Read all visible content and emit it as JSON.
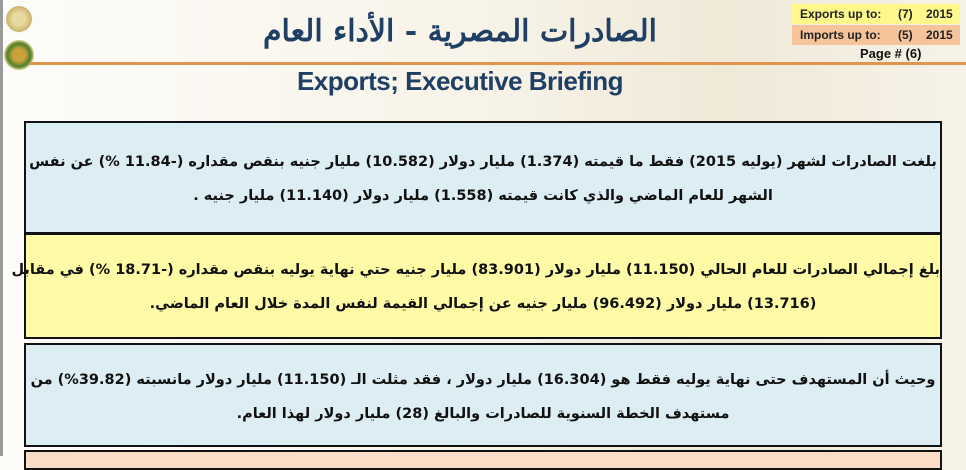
{
  "header": {
    "arabic_title": "الصادرات المصرية - الأداء العام",
    "english_title": "Exports; Executive Briefing",
    "exports_label": "Exports up to:",
    "exports_month": "(7)",
    "exports_year": "2015",
    "imports_label": "Imports up to:",
    "imports_month": "(5)",
    "imports_year": "2015",
    "page": "Page # (6)"
  },
  "colors": {
    "title": "#1f3f64",
    "rule": "#e0944e",
    "panel_blue": "#dcedf3",
    "panel_yellow": "#fefaa6",
    "exports_bg": "#fef98a",
    "imports_bg": "#f5c49a"
  },
  "panels": [
    {
      "lines": [
        "بلغت الصادرات لشهر (يوليه 2015) فقط ما قيمته (1.374) مليار دولار (10.582) مليار جنيه   بنقص مقداره (-11.84 %) عن نفس",
        "الشهر للعام الماضي والذي كانت قيمته (1.558) مليار دولار (11.140) مليار جنيه ."
      ]
    },
    {
      "lines": [
        "بلغ إجمالي الصادرات للعام الحالي (11.150) مليار دولار (83.901) مليار جنيه  حتي نهاية يوليه بنقص مقداره (-18.71 %) في مقابل",
        "(13.716) مليار دولار (96.492) مليار جنيه  عن إجمالي القيمة لنفس المدة خلال العام الماضي."
      ]
    },
    {
      "lines": [
        "وحيث أن المستهدف حتى نهاية يوليه فقط هو (16.304) مليار دولار ، فقد مثلت الـ (11.150) مليار دولار مانسبته (39.82%) من",
        "مستهدف الخطة السنوية للصادرات والبالغ (28) مليار دولار لهذا العام."
      ]
    }
  ]
}
